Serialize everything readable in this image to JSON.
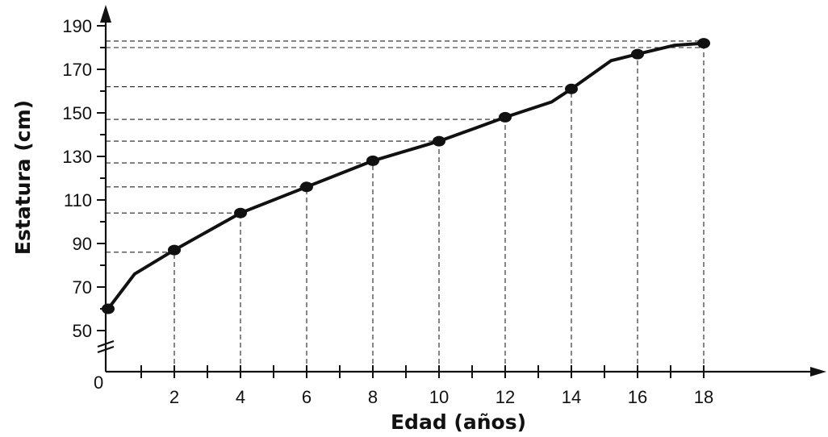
{
  "chart_data": {
    "type": "line",
    "xlabel": "Edad (años)",
    "ylabel": "Estatura (cm)",
    "xlim": [
      0,
      18
    ],
    "ylim": [
      50,
      190
    ],
    "x_origin_label": "0",
    "x_tick_labels": [
      "2",
      "4",
      "6",
      "8",
      "10",
      "12",
      "14",
      "16",
      "18"
    ],
    "y_tick_labels": [
      "50",
      "70",
      "90",
      "110",
      "130",
      "150",
      "170",
      "190"
    ],
    "axis_break": "y",
    "grid": false,
    "curve": {
      "x": [
        0,
        0.8,
        2,
        4,
        6,
        8,
        10,
        11.1,
        12,
        13.4,
        14,
        15.2,
        16,
        17.1,
        18
      ],
      "y": [
        60,
        76,
        87,
        104,
        116,
        128,
        137,
        143,
        148,
        155,
        161,
        174,
        177,
        181,
        182
      ]
    },
    "points": [
      {
        "x": 0,
        "y": 60
      },
      {
        "x": 2,
        "y": 87
      },
      {
        "x": 4,
        "y": 104
      },
      {
        "x": 6,
        "y": 116
      },
      {
        "x": 8,
        "y": 128
      },
      {
        "x": 10,
        "y": 137
      },
      {
        "x": 12,
        "y": 148
      },
      {
        "x": 14,
        "y": 161
      },
      {
        "x": 16,
        "y": 177
      },
      {
        "x": 18,
        "y": 182
      }
    ],
    "reference_lines": {
      "vertical_x": [
        2,
        4,
        6,
        8,
        10,
        12,
        14,
        16,
        18
      ],
      "horizontal_y": [
        86,
        104,
        116,
        127,
        137,
        147,
        162,
        180,
        183
      ]
    }
  }
}
